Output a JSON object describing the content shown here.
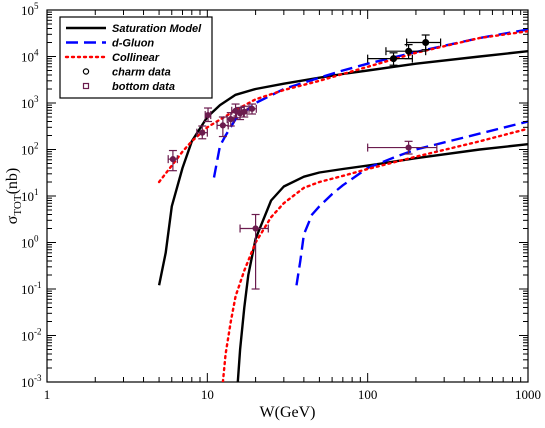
{
  "chart_data": {
    "type": "line",
    "title": "",
    "xlabel": "W(GeV)",
    "ylabel_main": "σ",
    "ylabel_sub": "TOT",
    "ylabel_unit": "(nb)",
    "x_scale": "log",
    "y_scale": "log",
    "xlim": [
      1,
      1000
    ],
    "ylim": [
      0.001,
      100000
    ],
    "grid": false,
    "legend_position": "top-left",
    "x_ticks": [
      {
        "value": 1,
        "label": "1"
      },
      {
        "value": 10,
        "label": "10"
      },
      {
        "value": 100,
        "label": "100"
      },
      {
        "value": 1000,
        "label": "1000"
      }
    ],
    "y_ticks": [
      {
        "value": 0.001,
        "base": "10",
        "exp": "-3"
      },
      {
        "value": 0.01,
        "base": "10",
        "exp": "-2"
      },
      {
        "value": 0.1,
        "base": "10",
        "exp": "-1"
      },
      {
        "value": 1,
        "base": "10",
        "exp": "0"
      },
      {
        "value": 10,
        "base": "10",
        "exp": "1"
      },
      {
        "value": 100,
        "base": "10",
        "exp": "2"
      },
      {
        "value": 1000,
        "base": "10",
        "exp": "3"
      },
      {
        "value": 10000,
        "base": "10",
        "exp": "4"
      },
      {
        "value": 100000,
        "base": "10",
        "exp": "5"
      }
    ],
    "series": [
      {
        "name": "Saturation Model",
        "style": "solid",
        "color": "#000000",
        "group": "charm",
        "x": [
          5,
          5.5,
          6,
          7,
          8,
          10,
          12,
          15,
          20,
          30,
          50,
          70,
          100,
          200,
          500,
          1000
        ],
        "y": [
          0.12,
          0.6,
          6,
          40,
          150,
          500,
          900,
          1500,
          2000,
          2600,
          3500,
          4200,
          5000,
          7000,
          10000,
          13000
        ]
      },
      {
        "name": "d-Gluon",
        "style": "dashed",
        "color": "#0000ff",
        "group": "charm",
        "x": [
          11,
          12,
          13,
          15,
          20,
          30,
          50,
          70,
          100,
          200,
          500,
          1000
        ],
        "y": [
          25,
          120,
          200,
          450,
          1000,
          2000,
          3500,
          5000,
          7000,
          12500,
          25000,
          38000
        ]
      },
      {
        "name": "Collinear",
        "style": "dotted",
        "color": "#ff0000",
        "group": "charm",
        "x": [
          5,
          6,
          7,
          8,
          10,
          15,
          20,
          30,
          50,
          100,
          200,
          500,
          1000
        ],
        "y": [
          20,
          45,
          90,
          150,
          300,
          700,
          1200,
          1900,
          3000,
          6000,
          12000,
          25000,
          35000
        ]
      },
      {
        "name": "",
        "style": "solid",
        "color": "#000000",
        "group": "bottom",
        "x": [
          15.5,
          16,
          17,
          18,
          20,
          25,
          30,
          40,
          50,
          70,
          100,
          200,
          500,
          1000
        ],
        "y": [
          0.001,
          0.005,
          0.04,
          0.2,
          1.2,
          8,
          16,
          26,
          32,
          38,
          45,
          65,
          100,
          130
        ]
      },
      {
        "name": "",
        "style": "dashed",
        "color": "#0000ff",
        "group": "bottom",
        "x": [
          36,
          38,
          40,
          45,
          50,
          60,
          70,
          100,
          150,
          200,
          500,
          1000
        ],
        "y": [
          0.12,
          0.4,
          1.5,
          4,
          6,
          11,
          17,
          40,
          70,
          100,
          220,
          400
        ]
      },
      {
        "name": "",
        "style": "dotted",
        "color": "#ff0000",
        "group": "bottom",
        "x": [
          12.5,
          13,
          14,
          15,
          17,
          20,
          25,
          30,
          40,
          50,
          70,
          100,
          200,
          500,
          1000
        ],
        "y": [
          0.001,
          0.004,
          0.02,
          0.07,
          0.25,
          1,
          3.5,
          7,
          15,
          20,
          27,
          38,
          70,
          150,
          280
        ]
      }
    ],
    "data_points": [
      {
        "name": "charm data",
        "marker": "circle",
        "color": "#000000",
        "points": [
          {
            "x": 145,
            "y": 9000,
            "xerr": [
              100,
              190
            ],
            "yerr": [
              6500,
              12000
            ]
          },
          {
            "x": 180,
            "y": 13000,
            "xerr": [
              130,
              230
            ],
            "yerr": [
              9000,
              18000
            ]
          },
          {
            "x": 230,
            "y": 20000,
            "xerr": [
              175,
              285
            ],
            "yerr": [
              14000,
              29000
            ]
          }
        ]
      },
      {
        "name": "bottom data",
        "marker": "square",
        "color": "#6b1c4e",
        "points": [
          {
            "x": 6.1,
            "y": 62,
            "xerr": [
              5.7,
              6.5
            ],
            "yerr": [
              35,
              95
            ]
          },
          {
            "x": 9.3,
            "y": 230,
            "xerr": [
              8.6,
              10.0
            ],
            "yerr": [
              170,
              320
            ]
          },
          {
            "x": 10.1,
            "y": 550,
            "xerr": [
              9.7,
              10.5
            ],
            "yerr": [
              400,
              780
            ]
          },
          {
            "x": 12.5,
            "y": 330,
            "xerr": [
              11.5,
              13.5
            ],
            "yerr": [
              190,
              500
            ]
          },
          {
            "x": 14,
            "y": 450,
            "xerr": [
              13.3,
              14.7
            ],
            "yerr": [
              320,
              620
            ]
          },
          {
            "x": 15,
            "y": 680,
            "xerr": [
              14.2,
              15.8
            ],
            "yerr": [
              480,
              950
            ]
          },
          {
            "x": 16,
            "y": 600,
            "xerr": [
              15.2,
              16.8
            ],
            "yerr": [
              440,
              800
            ]
          },
          {
            "x": 17,
            "y": 650,
            "xerr": [
              16.3,
              17.7
            ],
            "yerr": [
              500,
              850
            ]
          },
          {
            "x": 19,
            "y": 750,
            "xerr": [
              18.2,
              20.2
            ],
            "yerr": [
              580,
              950
            ]
          },
          {
            "x": 20,
            "y": 2,
            "xerr": [
              16,
              24
            ],
            "yerr": [
              0.1,
              4
            ]
          },
          {
            "x": 180,
            "y": 110,
            "xerr": [
              100,
              270
            ],
            "yerr": [
              80,
              150
            ]
          }
        ]
      }
    ]
  }
}
